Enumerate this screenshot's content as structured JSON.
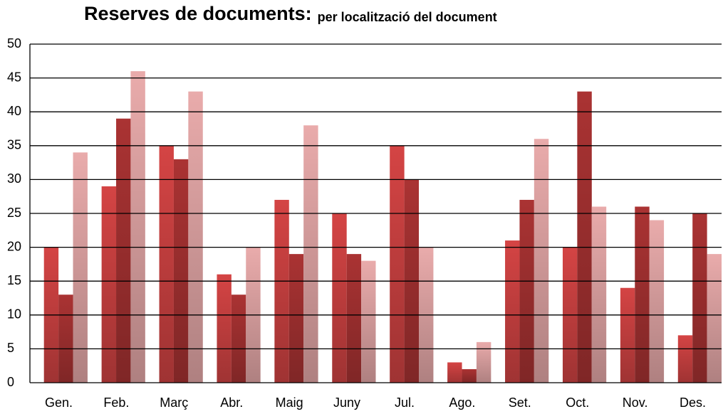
{
  "chart_data": {
    "type": "bar",
    "title": "Reserves de documents:",
    "subtitle": "per localització del document",
    "categories": [
      "Gen.",
      "Feb.",
      "Març",
      "Abr.",
      "Maig",
      "Juny",
      "Jul.",
      "Ago.",
      "Set.",
      "Oct.",
      "Nov.",
      "Des."
    ],
    "series": [
      {
        "color": "#d44444",
        "values": [
          20,
          29,
          35,
          16,
          27,
          25,
          35,
          3,
          21,
          20,
          14,
          7
        ]
      },
      {
        "color": "#aa3333",
        "values": [
          13,
          39,
          33,
          13,
          19,
          19,
          30,
          2,
          27,
          43,
          26,
          25
        ]
      },
      {
        "color": "#e9abab",
        "values": [
          34,
          46,
          43,
          20,
          38,
          18,
          20,
          6,
          36,
          26,
          24,
          19
        ]
      }
    ],
    "ylim": [
      0,
      50
    ],
    "yticks": [
      0,
      5,
      10,
      15,
      20,
      25,
      30,
      35,
      40,
      45,
      50
    ],
    "grid": true
  }
}
